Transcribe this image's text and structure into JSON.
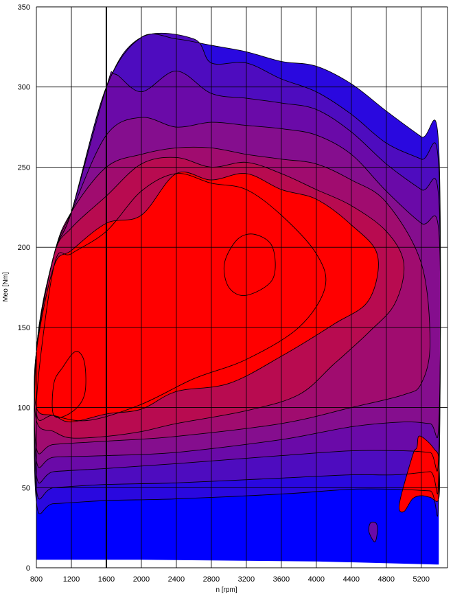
{
  "chart_data": {
    "type": "heatmap",
    "subtype": "filled-contour map",
    "title": "",
    "xlabel": "n [rpm]",
    "ylabel": "Mеo [Nm]",
    "xlim": [
      800,
      5500
    ],
    "ylim": [
      0,
      350
    ],
    "xticks": [
      800,
      1200,
      1600,
      2000,
      2400,
      2800,
      3200,
      3600,
      4000,
      4400,
      4800,
      5200
    ],
    "yticks": [
      0,
      50,
      100,
      150,
      200,
      250,
      300,
      350
    ],
    "grid": true,
    "colors": {
      "low": "#0000ff",
      "level_2": "#2a08df",
      "level_3": "#4e0cbf",
      "level_4": "#6a0aa8",
      "level_5": "#850e8e",
      "level_6": "#a00c6f",
      "level_7": "#b80b50",
      "high": "#ff0000",
      "contour_line": "#000000",
      "gridline": "#000000"
    },
    "levels": [
      {
        "level": 2,
        "outline": [
          [
            800,
            41
          ],
          [
            1000,
            40
          ],
          [
            1600,
            42
          ],
          [
            2400,
            43
          ],
          [
            3600,
            46
          ],
          [
            4400,
            49
          ],
          [
            4900,
            49
          ],
          [
            5300,
            48
          ],
          [
            5400,
            48
          ],
          [
            5400,
            262
          ],
          [
            5200,
            269
          ],
          [
            4800,
            285
          ],
          [
            4400,
            302
          ],
          [
            4000,
            313
          ],
          [
            3600,
            316
          ],
          [
            3200,
            322
          ],
          [
            2800,
            326
          ],
          [
            2400,
            330
          ],
          [
            2000,
            331
          ],
          [
            1600,
            300
          ],
          [
            1200,
            222
          ],
          [
            1000,
            195
          ],
          [
            800,
            135
          ]
        ]
      },
      {
        "level": 3,
        "outline": [
          [
            800,
            49
          ],
          [
            1000,
            50
          ],
          [
            1600,
            52
          ],
          [
            2400,
            53
          ],
          [
            3600,
            56
          ],
          [
            4400,
            58
          ],
          [
            4900,
            58
          ],
          [
            5300,
            60
          ],
          [
            5400,
            60
          ],
          [
            5400,
            250
          ],
          [
            5200,
            255
          ],
          [
            4800,
            265
          ],
          [
            4400,
            283
          ],
          [
            4000,
            297
          ],
          [
            3600,
            305
          ],
          [
            3200,
            315
          ],
          [
            2800,
            315
          ],
          [
            2600,
            330
          ],
          [
            2000,
            331
          ],
          [
            1600,
            300
          ],
          [
            1200,
            222
          ],
          [
            1000,
            195
          ],
          [
            800,
            135
          ]
        ]
      },
      {
        "level": 4,
        "outline": [
          [
            800,
            58
          ],
          [
            1000,
            60
          ],
          [
            1600,
            62
          ],
          [
            2400,
            65
          ],
          [
            3600,
            70
          ],
          [
            4400,
            73
          ],
          [
            5000,
            73
          ],
          [
            5300,
            72
          ],
          [
            5400,
            72
          ],
          [
            5400,
            230
          ],
          [
            5200,
            236
          ],
          [
            4800,
            252
          ],
          [
            4400,
            272
          ],
          [
            4000,
            286
          ],
          [
            3600,
            290
          ],
          [
            3200,
            293
          ],
          [
            2800,
            296
          ],
          [
            2400,
            310
          ],
          [
            2000,
            297
          ],
          [
            1700,
            308
          ],
          [
            1600,
            300
          ],
          [
            1200,
            222
          ],
          [
            1000,
            195
          ],
          [
            800,
            135
          ]
        ]
      },
      {
        "level": 5,
        "outline": [
          [
            800,
            67
          ],
          [
            1000,
            69
          ],
          [
            1600,
            70
          ],
          [
            2400,
            72
          ],
          [
            3600,
            80
          ],
          [
            4400,
            88
          ],
          [
            5000,
            91
          ],
          [
            5300,
            90
          ],
          [
            5400,
            90
          ],
          [
            5400,
            210
          ],
          [
            5200,
            215
          ],
          [
            4800,
            235
          ],
          [
            4400,
            258
          ],
          [
            4000,
            270
          ],
          [
            3600,
            274
          ],
          [
            3200,
            276
          ],
          [
            2800,
            278
          ],
          [
            2400,
            275
          ],
          [
            2000,
            281
          ],
          [
            1600,
            270
          ],
          [
            1200,
            222
          ],
          [
            1000,
            195
          ],
          [
            800,
            135
          ]
        ]
      },
      {
        "level": 6,
        "outline": [
          [
            800,
            75
          ],
          [
            1000,
            77
          ],
          [
            1600,
            79
          ],
          [
            2400,
            82
          ],
          [
            3600,
            90
          ],
          [
            4400,
            100
          ],
          [
            5000,
            108
          ],
          [
            5200,
            115
          ],
          [
            5300,
            140
          ],
          [
            5200,
            190
          ],
          [
            4800,
            228
          ],
          [
            4400,
            242
          ],
          [
            4000,
            252
          ],
          [
            3600,
            255
          ],
          [
            3200,
            258
          ],
          [
            2800,
            262
          ],
          [
            2400,
            262
          ],
          [
            2000,
            258
          ],
          [
            1600,
            250
          ],
          [
            1200,
            222
          ],
          [
            1000,
            195
          ],
          [
            800,
            135
          ]
        ]
      },
      {
        "level": 7,
        "outline": [
          [
            800,
            92
          ],
          [
            1000,
            85
          ],
          [
            1200,
            81
          ],
          [
            1600,
            82
          ],
          [
            2000,
            85
          ],
          [
            2400,
            90
          ],
          [
            3200,
            98
          ],
          [
            3800,
            108
          ],
          [
            4200,
            127
          ],
          [
            4600,
            147
          ],
          [
            4900,
            165
          ],
          [
            5000,
            190
          ],
          [
            4800,
            210
          ],
          [
            4400,
            226
          ],
          [
            4000,
            236
          ],
          [
            3600,
            246
          ],
          [
            3200,
            253
          ],
          [
            2800,
            250
          ],
          [
            2400,
            256
          ],
          [
            2000,
            252
          ],
          [
            1600,
            232
          ],
          [
            1200,
            212
          ],
          [
            1000,
            195
          ],
          [
            800,
            135
          ]
        ]
      },
      {
        "level": 8,
        "outline": [
          [
            800,
            100
          ],
          [
            1000,
            95
          ],
          [
            1200,
            91
          ],
          [
            1600,
            96
          ],
          [
            2000,
            99
          ],
          [
            2400,
            110
          ],
          [
            3000,
            115
          ],
          [
            3600,
            132
          ],
          [
            4200,
            152
          ],
          [
            4600,
            167
          ],
          [
            4700,
            195
          ],
          [
            4400,
            214
          ],
          [
            4000,
            230
          ],
          [
            3600,
            236
          ],
          [
            3200,
            246
          ],
          [
            2800,
            242
          ],
          [
            2400,
            246
          ],
          [
            2000,
            220
          ],
          [
            1600,
            215
          ],
          [
            1200,
            198
          ],
          [
            1000,
            188
          ],
          [
            800,
            135
          ]
        ]
      },
      {
        "level": 8,
        "outline": [
          [
            5000,
            35
          ],
          [
            5100,
            43
          ],
          [
            5200,
            45
          ],
          [
            5300,
            44
          ],
          [
            5400,
            43
          ],
          [
            5400,
            68
          ],
          [
            5350,
            74
          ],
          [
            5250,
            80
          ],
          [
            5170,
            82
          ],
          [
            5150,
            75
          ],
          [
            5100,
            70
          ],
          [
            4950,
            40
          ]
        ]
      },
      {
        "level": 4,
        "outline": [
          [
            4600,
            23
          ],
          [
            4650,
            17
          ],
          [
            4680,
            17
          ],
          [
            4700,
            24
          ],
          [
            4680,
            28
          ],
          [
            4620,
            28
          ]
        ]
      }
    ],
    "extra_contours": [
      [
        [
          1000,
          95
        ],
        [
          1200,
          97
        ],
        [
          1350,
          108
        ],
        [
          1350,
          128
        ],
        [
          1250,
          135
        ],
        [
          1100,
          125
        ],
        [
          1000,
          115
        ]
      ],
      [
        [
          3000,
          175
        ],
        [
          3200,
          170
        ],
        [
          3500,
          180
        ],
        [
          3500,
          200
        ],
        [
          3300,
          208
        ],
        [
          3100,
          205
        ],
        [
          2950,
          190
        ]
      ],
      [
        [
          800,
          100
        ],
        [
          1000,
          95
        ],
        [
          1400,
          92
        ],
        [
          2000,
          102
        ],
        [
          2600,
          118
        ],
        [
          3200,
          130
        ],
        [
          3800,
          150
        ],
        [
          4100,
          175
        ],
        [
          4000,
          196
        ],
        [
          3600,
          220
        ],
        [
          3200,
          236
        ],
        [
          2800,
          240
        ],
        [
          2400,
          246
        ],
        [
          2000,
          235
        ],
        [
          1600,
          210
        ],
        [
          1200,
          196
        ],
        [
          1000,
          188
        ]
      ]
    ]
  }
}
